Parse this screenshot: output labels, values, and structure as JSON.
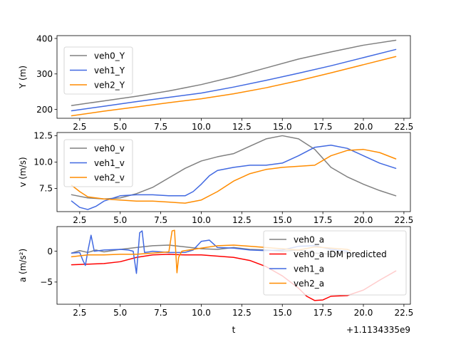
{
  "chart_data": [
    {
      "type": "line",
      "title": "",
      "xlabel": "",
      "ylabel": "Y (m)",
      "xlim": [
        1.1,
        22.9
      ],
      "ylim": [
        175,
        408
      ],
      "xticks": [
        2.5,
        5.0,
        7.5,
        10.0,
        12.5,
        15.0,
        17.5,
        20.0,
        22.5
      ],
      "xtick_labels": [
        "2.5",
        "5.0",
        "7.5",
        "10.0",
        "12.5",
        "15.0",
        "17.5",
        "20.0",
        "22.5"
      ],
      "yticks": [
        200,
        300,
        400
      ],
      "ytick_labels": [
        "200",
        "300",
        "400"
      ],
      "legend": "upper-left",
      "grid": false,
      "series": [
        {
          "name": "veh0_Y",
          "color": "#808080",
          "x": [
            2,
            4,
            6,
            8,
            10,
            12,
            14,
            16,
            18,
            20,
            22
          ],
          "y": [
            211,
            224,
            237,
            252,
            270,
            292,
            317,
            342,
            362,
            381,
            395
          ]
        },
        {
          "name": "veh1_Y",
          "color": "#4169e1",
          "x": [
            2,
            4,
            6,
            8,
            10,
            12,
            14,
            16,
            18,
            20,
            22
          ],
          "y": [
            196,
            209,
            222,
            234,
            246,
            263,
            282,
            302,
            323,
            346,
            369
          ]
        },
        {
          "name": "veh2_Y",
          "color": "#ff8c00",
          "x": [
            2,
            4,
            6,
            8,
            10,
            12,
            14,
            16,
            18,
            20,
            22
          ],
          "y": [
            182,
            195,
            207,
            219,
            230,
            244,
            261,
            281,
            303,
            326,
            349
          ]
        }
      ]
    },
    {
      "type": "line",
      "title": "",
      "xlabel": "",
      "ylabel": "v (m/s)",
      "xlim": [
        1.1,
        22.9
      ],
      "ylim": [
        5.3,
        12.8
      ],
      "xticks": [
        2.5,
        5.0,
        7.5,
        10.0,
        12.5,
        15.0,
        17.5,
        20.0,
        22.5
      ],
      "xtick_labels": [
        "2.5",
        "5.0",
        "7.5",
        "10.0",
        "12.5",
        "15.0",
        "17.5",
        "20.0",
        "22.5"
      ],
      "yticks": [
        7.5,
        10.0,
        12.5
      ],
      "ytick_labels": [
        "7.5",
        "10.0",
        "12.5"
      ],
      "legend": "upper-left",
      "grid": false,
      "series": [
        {
          "name": "veh0_v",
          "color": "#808080",
          "x": [
            2,
            3,
            4,
            5,
            6,
            7,
            8,
            9,
            10,
            11,
            12,
            13,
            14,
            15,
            16,
            17,
            18,
            19,
            20,
            21,
            22
          ],
          "y": [
            6.9,
            6.6,
            6.5,
            6.6,
            7.0,
            7.6,
            8.5,
            9.4,
            10.1,
            10.5,
            10.8,
            11.5,
            12.2,
            12.5,
            12.2,
            11.2,
            9.5,
            8.6,
            7.9,
            7.3,
            6.8
          ]
        },
        {
          "name": "veh1_v",
          "color": "#4169e1",
          "x": [
            2,
            2.5,
            3,
            3.5,
            4,
            5,
            6,
            7,
            8,
            9,
            9.5,
            10,
            10.5,
            11,
            12,
            13,
            14,
            15,
            16,
            17,
            18,
            19,
            20,
            21,
            22
          ],
          "y": [
            6.3,
            5.7,
            5.5,
            5.8,
            6.3,
            6.8,
            6.9,
            6.9,
            6.8,
            6.8,
            7.2,
            7.9,
            8.7,
            9.2,
            9.5,
            9.7,
            9.7,
            9.9,
            10.6,
            11.4,
            11.6,
            11.3,
            10.6,
            9.9,
            9.4
          ]
        },
        {
          "name": "veh2_v",
          "color": "#ff8c00",
          "x": [
            2,
            2.5,
            3,
            4,
            5,
            6,
            7,
            8,
            9,
            10,
            11,
            12,
            13,
            14,
            15,
            16,
            17,
            18,
            19,
            20,
            21,
            22
          ],
          "y": [
            7.8,
            7.2,
            6.7,
            6.5,
            6.4,
            6.3,
            6.3,
            6.2,
            6.1,
            6.4,
            7.2,
            8.2,
            8.9,
            9.3,
            9.5,
            9.6,
            9.7,
            10.6,
            11.1,
            11.2,
            10.9,
            10.3
          ]
        }
      ]
    },
    {
      "type": "line",
      "title": "",
      "xlabel": "t",
      "ylabel": "a (m/s²)",
      "xlim": [
        1.1,
        22.9
      ],
      "ylim": [
        -8.6,
        4.0
      ],
      "xticks": [
        2.5,
        5.0,
        7.5,
        10.0,
        12.5,
        15.0,
        17.5,
        20.0,
        22.5
      ],
      "xtick_labels": [
        "2.5",
        "5.0",
        "7.5",
        "10.0",
        "12.5",
        "15.0",
        "17.5",
        "20.0",
        "22.5"
      ],
      "yticks": [
        -5,
        0
      ],
      "ytick_labels": [
        "−5",
        "0"
      ],
      "offset_label": "+1.1134335e9",
      "legend": "lower-right",
      "grid": false,
      "series": [
        {
          "name": "veh0_a",
          "color": "#808080",
          "x": [
            2,
            2.5,
            3,
            3.5,
            4,
            5,
            6,
            7,
            8,
            9,
            10,
            11,
            12,
            13,
            14,
            15,
            16,
            17,
            18,
            19,
            19.2
          ],
          "y": [
            -0.3,
            0.1,
            -0.2,
            0.2,
            -0.1,
            0.3,
            0.6,
            0.9,
            1.0,
            0.7,
            0.4,
            0.3,
            0.6,
            0.3,
            0.2,
            0.0,
            0.2,
            -0.3,
            -0.5,
            -0.2,
            -0.2
          ]
        },
        {
          "name": "veh0_a IDM predicted",
          "color": "#ff0000",
          "x": [
            2,
            3,
            4,
            5,
            6,
            7,
            8,
            9,
            10,
            11,
            12,
            13,
            14,
            15,
            16,
            16.5,
            17,
            17.5,
            18,
            19,
            20,
            21,
            22
          ],
          "y": [
            -2.2,
            -2.1,
            -2.0,
            -1.7,
            -1.0,
            -0.6,
            -0.5,
            -0.6,
            -0.6,
            -0.8,
            -1.0,
            -1.5,
            -2.5,
            -4.0,
            -6.0,
            -7.3,
            -8.0,
            -7.9,
            -7.3,
            -7.2,
            -6.3,
            -4.7,
            -3.2
          ]
        },
        {
          "name": "veh1_a",
          "color": "#4169e1",
          "x": [
            2,
            2.5,
            2.7,
            2.85,
            3.0,
            3.2,
            3.4,
            4,
            5,
            5.5,
            5.8,
            6.0,
            6.2,
            6.35,
            6.5,
            6.8,
            7,
            8,
            9,
            9.5,
            10,
            10.5,
            11,
            12,
            13,
            14,
            15,
            16,
            17,
            18,
            19,
            19.2
          ],
          "y": [
            -0.3,
            -0.2,
            -1.5,
            -2.3,
            0.0,
            2.6,
            0.0,
            0.2,
            0.3,
            0.2,
            0.0,
            -3.6,
            3.0,
            3.3,
            -0.2,
            -0.1,
            0.0,
            -0.2,
            -0.2,
            0.2,
            1.6,
            1.8,
            0.6,
            0.5,
            0.2,
            0.1,
            0.2,
            0.8,
            0.9,
            0.3,
            0.0,
            -0.4
          ]
        },
        {
          "name": "veh2_a",
          "color": "#ff8c00",
          "x": [
            2,
            3,
            4,
            5,
            6,
            7,
            8.0,
            8.2,
            8.35,
            8.5,
            8.6,
            8.8,
            9,
            10,
            11,
            12,
            13,
            14,
            15,
            16,
            17,
            18,
            19,
            19.2
          ],
          "y": [
            -0.9,
            -0.6,
            -0.6,
            -0.5,
            -0.5,
            -0.3,
            -0.1,
            3.3,
            3.4,
            -3.5,
            -1.0,
            0.0,
            0.1,
            0.5,
            0.9,
            1.0,
            0.8,
            0.6,
            0.4,
            0.2,
            0.7,
            0.5,
            0.3,
            0.1
          ]
        }
      ]
    }
  ]
}
